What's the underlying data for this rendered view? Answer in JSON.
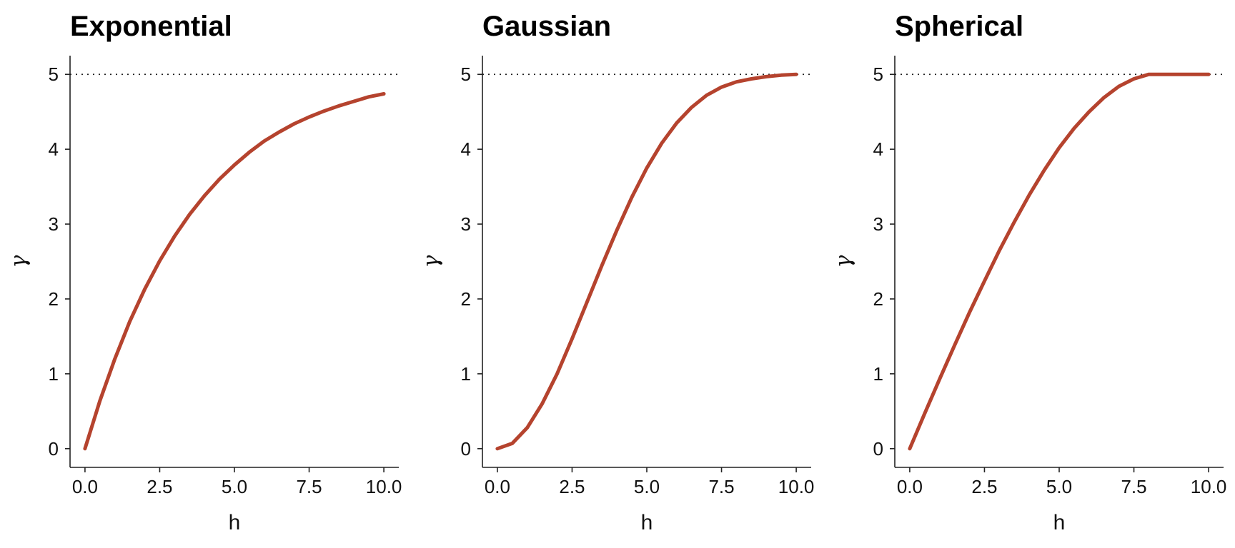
{
  "colors": {
    "curve": "#b5432e",
    "sill": "#222222"
  },
  "chart_data": [
    {
      "type": "line",
      "title": "Exponential",
      "xlabel": "h",
      "ylabel": "γ",
      "xlim": [
        -0.5,
        10.5
      ],
      "ylim": [
        -0.25,
        5.25
      ],
      "xticks": [
        0,
        2.5,
        5,
        7.5,
        10
      ],
      "xtick_labels": [
        "0.0",
        "2.5",
        "5.0",
        "7.5",
        "10.0"
      ],
      "yticks": [
        0,
        1,
        2,
        3,
        4,
        5
      ],
      "ytick_labels": [
        "0",
        "1",
        "2",
        "3",
        "4",
        "5"
      ],
      "reference_line_y": 5,
      "grid": false,
      "x": [
        0,
        0.5,
        1,
        1.5,
        2,
        2.5,
        3,
        3.5,
        4,
        4.5,
        5,
        5.5,
        6,
        6.5,
        7,
        7.5,
        8,
        8.5,
        9,
        9.5,
        10
      ],
      "y": [
        0,
        0.64,
        1.2,
        1.7,
        2.13,
        2.51,
        2.84,
        3.13,
        3.38,
        3.6,
        3.79,
        3.96,
        4.11,
        4.23,
        4.34,
        4.43,
        4.51,
        4.58,
        4.64,
        4.7,
        4.74
      ]
    },
    {
      "type": "line",
      "title": "Gaussian",
      "xlabel": "h",
      "ylabel": "γ",
      "xlim": [
        -0.5,
        10.5
      ],
      "ylim": [
        -0.25,
        5.25
      ],
      "xticks": [
        0,
        2.5,
        5,
        7.5,
        10
      ],
      "xtick_labels": [
        "0.0",
        "2.5",
        "5.0",
        "7.5",
        "10.0"
      ],
      "yticks": [
        0,
        1,
        2,
        3,
        4,
        5
      ],
      "ytick_labels": [
        "0",
        "1",
        "2",
        "3",
        "4",
        "5"
      ],
      "reference_line_y": 5,
      "grid": false,
      "x": [
        0,
        0.5,
        1,
        1.5,
        2,
        2.5,
        3,
        3.5,
        4,
        4.5,
        5,
        5.5,
        6,
        6.5,
        7,
        7.5,
        8,
        8.5,
        9,
        9.5,
        10
      ],
      "y": [
        0,
        0.07,
        0.28,
        0.6,
        1.0,
        1.47,
        1.96,
        2.45,
        2.92,
        3.36,
        3.75,
        4.08,
        4.35,
        4.56,
        4.72,
        4.83,
        4.9,
        4.94,
        4.97,
        4.99,
        5.0
      ]
    },
    {
      "type": "line",
      "title": "Spherical",
      "xlabel": "h",
      "ylabel": "γ",
      "xlim": [
        -0.5,
        10.5
      ],
      "ylim": [
        -0.25,
        5.25
      ],
      "xticks": [
        0,
        2.5,
        5,
        7.5,
        10
      ],
      "xtick_labels": [
        "0.0",
        "2.5",
        "5.0",
        "7.5",
        "10.0"
      ],
      "yticks": [
        0,
        1,
        2,
        3,
        4,
        5
      ],
      "ytick_labels": [
        "0",
        "1",
        "2",
        "3",
        "4",
        "5"
      ],
      "reference_line_y": 5,
      "grid": false,
      "x": [
        0,
        0.5,
        1,
        1.5,
        2,
        2.5,
        3,
        3.5,
        4,
        4.5,
        5,
        5.5,
        6,
        6.5,
        7,
        7.5,
        8,
        8.5,
        9,
        9.5,
        10
      ],
      "y": [
        0,
        0.47,
        0.93,
        1.38,
        1.82,
        2.24,
        2.65,
        3.03,
        3.39,
        3.72,
        4.02,
        4.28,
        4.5,
        4.69,
        4.84,
        4.94,
        5.0,
        5.0,
        5.0,
        5.0,
        5.0
      ]
    }
  ]
}
